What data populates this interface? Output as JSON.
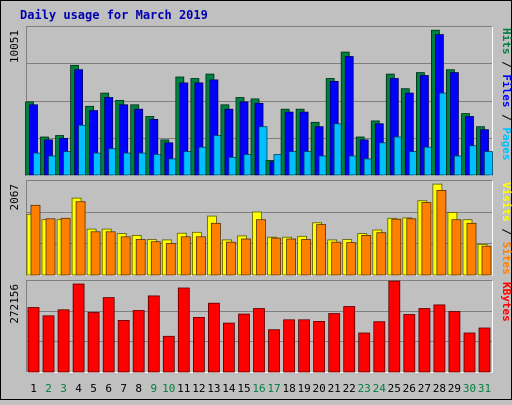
{
  "chart_data": {
    "type": "bar",
    "title": "Daily usage for March 2019",
    "categories": [
      "1",
      "2",
      "3",
      "4",
      "5",
      "6",
      "7",
      "8",
      "9",
      "10",
      "11",
      "12",
      "13",
      "14",
      "15",
      "16",
      "17",
      "18",
      "19",
      "20",
      "21",
      "22",
      "23",
      "24",
      "25",
      "26",
      "27",
      "28",
      "29",
      "30",
      "31"
    ],
    "weekend_days": [
      "2",
      "3",
      "9",
      "10",
      "16",
      "17",
      "23",
      "24",
      "30",
      "31"
    ],
    "panels": [
      {
        "name": "hits-files-pages",
        "y_max": 10051,
        "y_max_label": "10051",
        "axis_label_parts": [
          "Pages",
          "Files",
          "Hits"
        ],
        "series": [
          {
            "name": "Hits",
            "color": "#008040",
            "values": [
              5000,
              2600,
              2700,
              7500,
              4700,
              5600,
              5100,
              4800,
              4000,
              2400,
              6700,
              6600,
              6900,
              4800,
              5300,
              5200,
              1000,
              4500,
              4500,
              3600,
              6600,
              8400,
              2600,
              3700,
              6900,
              5900,
              7000,
              9900,
              7200,
              4200,
              3300
            ]
          },
          {
            "name": "Files",
            "color": "#0000ff",
            "values": [
              4800,
              2400,
              2500,
              7200,
              4400,
              5300,
              4800,
              4500,
              3800,
              2200,
              6300,
              6300,
              6500,
              4500,
              5000,
              4900,
              900,
              4300,
              4300,
              3300,
              6400,
              8100,
              2400,
              3500,
              6600,
              5600,
              6800,
              9600,
              7000,
              4000,
              3100
            ]
          },
          {
            "name": "Pages",
            "color": "#00c0ff",
            "values": [
              1500,
              1300,
              1600,
              3400,
              1500,
              1800,
              1500,
              1500,
              1400,
              1100,
              1600,
              1900,
              2700,
              1200,
              1400,
              3300,
              1400,
              1600,
              1600,
              1300,
              3500,
              1300,
              1100,
              2200,
              2600,
              1600,
              1900,
              5600,
              1300,
              2000,
              1600
            ]
          }
        ]
      },
      {
        "name": "visits-sites",
        "y_max": 2067,
        "y_max_label": "2067",
        "axis_label_parts": [
          "Sites",
          "Visits"
        ],
        "series": [
          {
            "name": "Visits",
            "color": "#ffff00",
            "values": [
              1350,
              1230,
              1230,
              1710,
              1020,
              1020,
              920,
              880,
              790,
              780,
              930,
              950,
              1310,
              780,
              870,
              1400,
              840,
              840,
              860,
              1160,
              780,
              790,
              920,
              1000,
              1260,
              1270,
              1650,
              2020,
              1390,
              1230,
              680
            ]
          },
          {
            "name": "Sites",
            "color": "#ff8000",
            "values": [
              1550,
              1250,
              1260,
              1630,
              960,
              960,
              850,
              790,
              740,
              700,
              850,
              850,
              1150,
              730,
              800,
              1230,
              820,
              800,
              790,
              1120,
              730,
              720,
              880,
              940,
              1240,
              1250,
              1610,
              1880,
              1230,
              1150,
              640
            ]
          }
        ]
      },
      {
        "name": "kbytes",
        "y_max": 272156,
        "y_max_label": "272156",
        "axis_label_parts": [
          "KBytes"
        ],
        "series": [
          {
            "name": "KBytes",
            "color": "#ff0000",
            "values": [
              195000,
              170000,
              188000,
              266000,
              180000,
              225000,
              156000,
              186000,
              230000,
              108000,
              254000,
              165000,
              208000,
              148000,
              175000,
              192000,
              128000,
              158000,
              158000,
              153000,
              177000,
              198000,
              118000,
              152000,
              275000,
              174000,
              192000,
              203000,
              183000,
              118000,
              133000
            ]
          }
        ]
      }
    ]
  }
}
